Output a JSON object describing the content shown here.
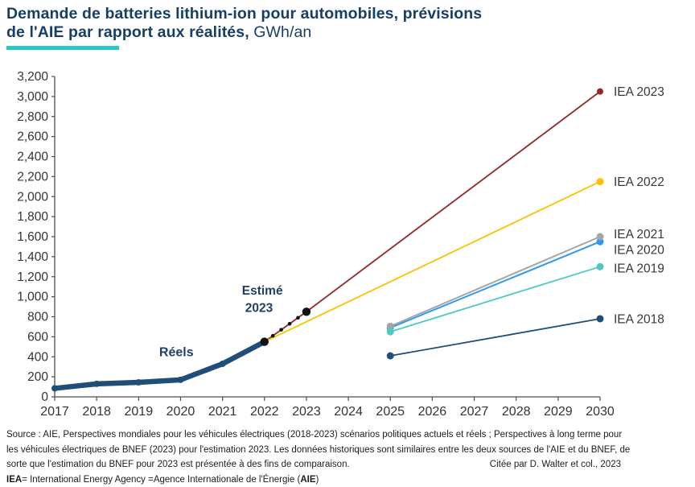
{
  "header": {
    "title_line1": "Demande de batteries lithium-ion pour automobiles, prévisions",
    "title_line2_bold": "de l'AIE par rapport aux réalités, ",
    "title_unit": "GWh/an",
    "title_color": "#173f66",
    "accent_color": "#29c8ca"
  },
  "chart_data": {
    "type": "line",
    "title": "Demande de batteries lithium-ion pour automobiles, prévisions de l'AIE par rapport aux réalités",
    "unit": "GWh/an",
    "xlabel": "",
    "ylabel": "GWh/an",
    "x_range": [
      2017,
      2030
    ],
    "ylim": [
      0,
      3200
    ],
    "y_tick_step": 200,
    "x_tick_labels": [
      "2017",
      "2018",
      "2019",
      "2020",
      "2021",
      "2022",
      "2023",
      "2024",
      "2025",
      "2026",
      "2027",
      "2028",
      "2029",
      "2030"
    ],
    "grid": false,
    "legend_position": "right-of-line-endpoints",
    "axis_color": "#4d4d4d",
    "tick_label_color": "#333333",
    "end_label_color": "#383838",
    "series": [
      {
        "name": "IEA 2023",
        "color": "#932629",
        "width": 1.8,
        "markers": "end",
        "marker_r": 4,
        "points": [
          [
            2022,
            550
          ],
          [
            2023,
            850
          ],
          [
            2030,
            3050
          ]
        ],
        "end_label": "IEA 2023",
        "label_dy": 5.5
      },
      {
        "name": "IEA 2022",
        "color": "#ffc000",
        "width": 1.8,
        "markers": "end",
        "marker_r": 4.5,
        "points": [
          [
            2022,
            550
          ],
          [
            2030,
            2150
          ]
        ],
        "end_label": "IEA 2022",
        "label_dy": 5.5
      },
      {
        "name": "IEA 2020",
        "color": "#2e9af0",
        "width": 2,
        "markers": "ends",
        "marker_r": 4.5,
        "points": [
          [
            2025,
            690
          ],
          [
            2030,
            1550
          ]
        ],
        "end_label": "IEA 2020",
        "label_dy": 15.5
      },
      {
        "name": "IEA 2021",
        "color": "#a5a5a5",
        "width": 2,
        "markers": "ends",
        "marker_r": 4.5,
        "points": [
          [
            2025,
            705
          ],
          [
            2030,
            1600
          ]
        ],
        "end_label": "IEA 2021",
        "label_dy": 2
      },
      {
        "name": "IEA 2019",
        "color": "#4cc8c6",
        "width": 1.8,
        "markers": "ends",
        "marker_r": 4.5,
        "points": [
          [
            2025,
            650
          ],
          [
            2030,
            1300
          ]
        ],
        "end_label": "IEA 2019",
        "label_dy": 7
      },
      {
        "name": "IEA 2018",
        "color": "#1f4e79",
        "width": 1.8,
        "markers": "ends",
        "marker_r": 4.5,
        "points": [
          [
            2025,
            410
          ],
          [
            2030,
            780
          ]
        ],
        "end_label": "IEA 2018",
        "label_dy": 5.5
      },
      {
        "name": "Réels",
        "color": "#1f4e79",
        "width": 6.5,
        "markers": "all",
        "marker_r": 4,
        "points": [
          [
            2017,
            85
          ],
          [
            2018,
            130
          ],
          [
            2019,
            145
          ],
          [
            2020,
            170
          ],
          [
            2021,
            330
          ],
          [
            2022,
            550
          ]
        ]
      },
      {
        "name": "Estimé 2023",
        "color": "#111111",
        "style": "dotted",
        "marker_r": 5.2,
        "small_r": 2.3,
        "points": [
          [
            2022,
            550
          ],
          [
            2023,
            850
          ]
        ]
      }
    ],
    "annotations": [
      {
        "text": "Réels",
        "x": 2019.9,
        "y": 445,
        "color": "#1f4066",
        "size": 16,
        "bold": true
      },
      {
        "text": "Estimé",
        "x": 2021.95,
        "y": 1060,
        "color": "#1f4066",
        "size": 15.5,
        "bold": true
      },
      {
        "text": "2023",
        "x": 2021.87,
        "y": 890,
        "color": "#1f4066",
        "size": 15.5,
        "bold": true
      }
    ]
  },
  "footer": {
    "line1": "Source : AIE, Perspectives mondiales pour les véhicules électriques (2018-2023) scénarios politiques actuels et réels ; Perspectives à long terme pour",
    "line2": "les véhicules électriques de BNEF (2023) pour l'estimation 2023. Les données historiques sont similaires entre les deux sources de l'AIE et du BNEF, de",
    "line3": "sorte que l'estimation du BNEF pour 2023 est présentée à des fins de comparaison.",
    "citation": "Citée par D. Walter et col., 2023",
    "def_bold1": "IEA",
    "def_mid": "= International Energy Agency =Agence Internationale de l'Énergie (",
    "def_bold2": "AIE",
    "def_end": ")"
  }
}
